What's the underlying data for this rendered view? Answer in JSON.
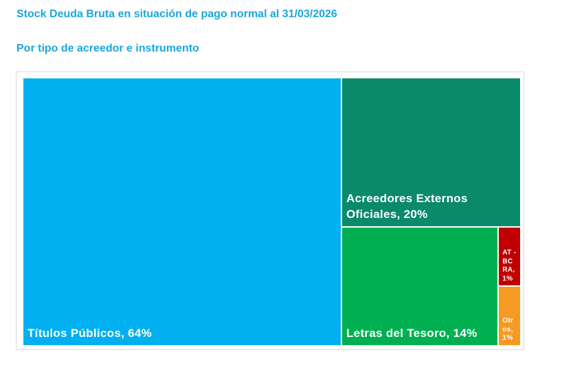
{
  "chart_data": {
    "type": "treemap",
    "title": "Stock Deuda Bruta en situación de pago normal al 31/03/2026",
    "subtitle": "Por tipo de acreedor e instrumento",
    "categories": [
      "Títulos Públicos, 64%",
      "Acreedores Externos Oficiales, 20%",
      "Letras del Tesoro, 14%",
      "AT - BCRA, 1%",
      "Otros, 1%"
    ],
    "values": [
      64,
      20,
      14,
      1,
      1
    ],
    "colors": [
      "#00b0f0",
      "#0a8a6b",
      "#00b050",
      "#c00000",
      "#f59a23"
    ]
  }
}
